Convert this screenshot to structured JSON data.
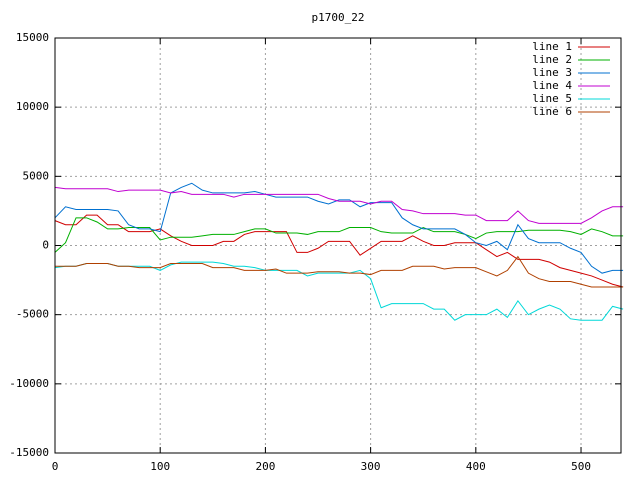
{
  "chart_data": {
    "type": "line",
    "title": "p1700_22",
    "x": [
      0,
      10,
      20,
      30,
      40,
      50,
      60,
      70,
      80,
      90,
      100,
      110,
      120,
      130,
      140,
      150,
      160,
      170,
      180,
      190,
      200,
      210,
      220,
      230,
      240,
      250,
      260,
      270,
      280,
      290,
      300,
      310,
      320,
      330,
      340,
      350,
      360,
      370,
      380,
      390,
      400,
      410,
      420,
      430,
      440,
      450,
      460,
      470,
      480,
      490,
      500,
      510,
      520,
      530,
      540
    ],
    "xlim": [
      0,
      538
    ],
    "ylim": [
      -15000,
      15000
    ],
    "xticks": [
      0,
      100,
      200,
      300,
      400,
      500
    ],
    "yticks": [
      -15000,
      -10000,
      -5000,
      0,
      5000,
      10000,
      15000
    ],
    "grid": true,
    "legend": "top right",
    "series": [
      {
        "name": "line 1",
        "color": "#d00000",
        "values": [
          1800,
          1500,
          1500,
          2200,
          2200,
          1500,
          1500,
          1000,
          1000,
          1000,
          1200,
          700,
          300,
          0,
          0,
          0,
          300,
          300,
          800,
          1000,
          1000,
          1000,
          1000,
          -500,
          -500,
          -200,
          300,
          300,
          300,
          -700,
          -200,
          300,
          300,
          300,
          700,
          300,
          0,
          0,
          200,
          200,
          200,
          -300,
          -800,
          -500,
          -1000,
          -1000,
          -1000,
          -1200,
          -1600,
          -1800,
          -2000,
          -2200,
          -2500,
          -2800,
          -3000
        ]
      },
      {
        "name": "line 2",
        "color": "#00b000",
        "values": [
          -500,
          200,
          2000,
          2000,
          1700,
          1200,
          1200,
          1300,
          1300,
          1300,
          400,
          600,
          600,
          600,
          700,
          800,
          800,
          800,
          1000,
          1200,
          1200,
          900,
          900,
          900,
          800,
          1000,
          1000,
          1000,
          1300,
          1300,
          1300,
          1000,
          900,
          900,
          900,
          1300,
          1000,
          1000,
          1000,
          800,
          500,
          900,
          1000,
          1000,
          1000,
          1100,
          1100,
          1100,
          1100,
          1000,
          800,
          1200,
          1000,
          700,
          700
        ]
      },
      {
        "name": "line 3",
        "color": "#0070d0",
        "values": [
          2000,
          2800,
          2600,
          2600,
          2600,
          2600,
          2500,
          1500,
          1200,
          1200,
          1000,
          3800,
          4200,
          4500,
          4000,
          3800,
          3800,
          3800,
          3800,
          3900,
          3700,
          3500,
          3500,
          3500,
          3500,
          3200,
          3000,
          3300,
          3300,
          2800,
          3100,
          3100,
          3100,
          2000,
          1500,
          1200,
          1200,
          1200,
          1200,
          800,
          200,
          0,
          300,
          -300,
          1500,
          500,
          200,
          200,
          200,
          -200,
          -500,
          -1500,
          -2000,
          -1800,
          -1800
        ]
      },
      {
        "name": "line 4",
        "color": "#c000d0",
        "values": [
          4200,
          4100,
          4100,
          4100,
          4100,
          4100,
          3900,
          4000,
          4000,
          4000,
          4000,
          3800,
          3900,
          3700,
          3700,
          3700,
          3700,
          3500,
          3700,
          3700,
          3700,
          3700,
          3700,
          3700,
          3700,
          3700,
          3400,
          3200,
          3200,
          3200,
          3000,
          3200,
          3200,
          2600,
          2500,
          2300,
          2300,
          2300,
          2300,
          2200,
          2200,
          1800,
          1800,
          1800,
          2500,
          1800,
          1600,
          1600,
          1600,
          1600,
          1600,
          2000,
          2500,
          2800,
          2800
        ]
      },
      {
        "name": "line 5",
        "color": "#00d8d8",
        "values": [
          -1600,
          -1500,
          -1500,
          -1300,
          -1300,
          -1300,
          -1500,
          -1500,
          -1500,
          -1500,
          -1800,
          -1400,
          -1200,
          -1200,
          -1200,
          -1200,
          -1300,
          -1500,
          -1500,
          -1600,
          -1800,
          -1800,
          -1800,
          -1800,
          -2200,
          -2000,
          -2000,
          -2000,
          -2000,
          -1800,
          -2400,
          -4500,
          -4200,
          -4200,
          -4200,
          -4200,
          -4600,
          -4600,
          -5400,
          -5000,
          -5000,
          -5000,
          -4600,
          -5200,
          -4000,
          -5000,
          -4600,
          -4300,
          -4600,
          -5300,
          -5400,
          -5400,
          -5400,
          -4400,
          -4600
        ]
      },
      {
        "name": "line 6",
        "color": "#b04000",
        "values": [
          -1500,
          -1500,
          -1500,
          -1300,
          -1300,
          -1300,
          -1500,
          -1500,
          -1600,
          -1600,
          -1600,
          -1300,
          -1300,
          -1300,
          -1300,
          -1600,
          -1600,
          -1600,
          -1800,
          -1800,
          -1800,
          -1700,
          -2000,
          -2000,
          -2000,
          -1900,
          -1900,
          -1900,
          -2000,
          -2000,
          -2100,
          -1800,
          -1800,
          -1800,
          -1500,
          -1500,
          -1500,
          -1700,
          -1600,
          -1600,
          -1600,
          -1900,
          -2200,
          -1800,
          -800,
          -2000,
          -2400,
          -2600,
          -2600,
          -2600,
          -2800,
          -3000,
          -3000,
          -3000,
          -3000
        ]
      }
    ]
  }
}
